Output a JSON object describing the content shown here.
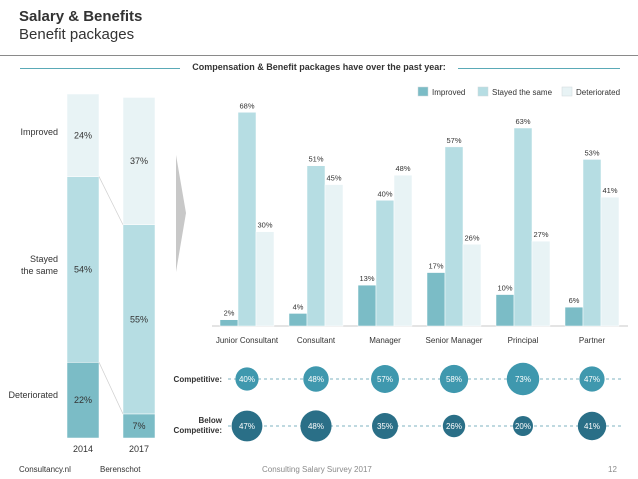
{
  "header": {
    "title": "Salary & Benefits",
    "subtitle": "Benefit packages"
  },
  "section_title": "Compensation & Benefit packages have over the past year:",
  "colors": {
    "improved": "#7bbcc6",
    "stayed": "#b6dde3",
    "deteriorated": "#e8f3f5",
    "circle_light": "#3f98ae",
    "circle_dark": "#2a6f87",
    "accent_line": "#5aaab7"
  },
  "footer": {
    "left1": "Consultancy.nl",
    "left2": "Berenschot",
    "center": "Consulting Salary Survey 2017",
    "page": "12"
  },
  "circle_labels": {
    "competitive": "Competitive:",
    "below_competitive": "Below\nCompetitive:"
  },
  "chart_data": [
    {
      "type": "bar",
      "stacked": true,
      "categories": [
        "2014",
        "2017"
      ],
      "series": [
        {
          "name": "Deteriorated",
          "values": [
            22,
            7
          ]
        },
        {
          "name": "Stayed the same",
          "values": [
            54,
            55
          ]
        },
        {
          "name": "Improved",
          "values": [
            24,
            37
          ]
        }
      ],
      "row_labels": [
        "Improved",
        "Stayed\nthe same",
        "Deteriorated"
      ],
      "value_labels": [
        [
          "22%",
          "7%"
        ],
        [
          "54%",
          "55%"
        ],
        [
          "24%",
          "37%"
        ]
      ],
      "ylim": [
        0,
        100
      ]
    },
    {
      "type": "bar",
      "categories": [
        "Junior Consultant",
        "Consultant",
        "Manager",
        "Senior Manager",
        "Principal",
        "Partner"
      ],
      "series": [
        {
          "name": "Improved",
          "values": [
            2,
            4,
            13,
            17,
            10,
            6
          ]
        },
        {
          "name": "Stayed the same",
          "values": [
            68,
            51,
            40,
            57,
            63,
            53
          ]
        },
        {
          "name": "Deteriorated",
          "values": [
            30,
            45,
            48,
            26,
            27,
            41
          ]
        }
      ],
      "legend": "top-right",
      "ylim": [
        0,
        70
      ],
      "competitive": [
        "40%",
        "48%",
        "57%",
        "58%",
        "73%",
        "47%"
      ],
      "below_competitive": [
        "47%",
        "48%",
        "35%",
        "26%",
        "20%",
        "41%"
      ]
    }
  ]
}
